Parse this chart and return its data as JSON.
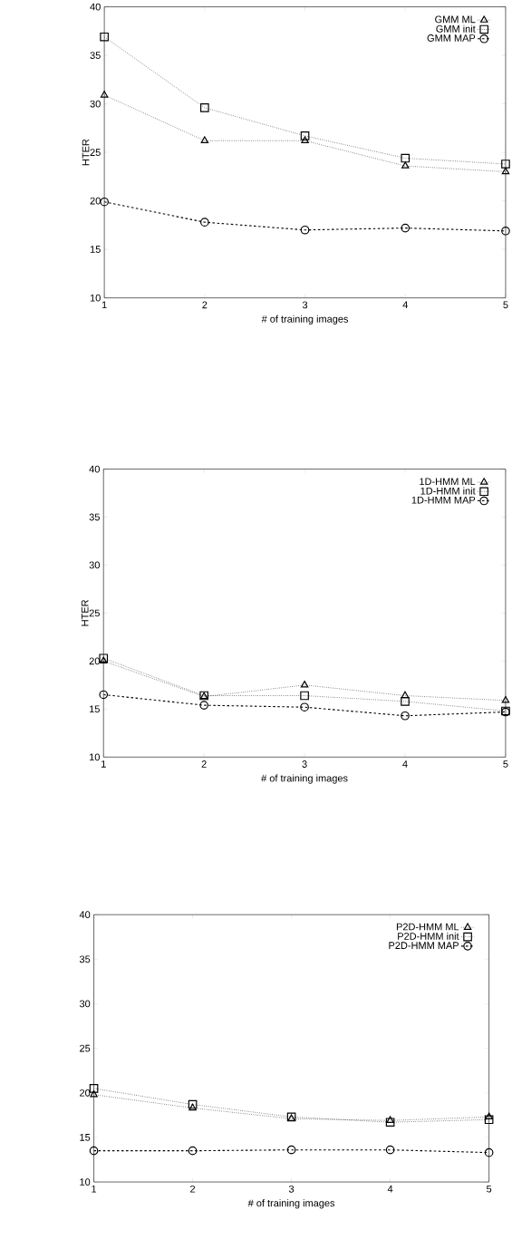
{
  "chart_data": [
    {
      "type": "line",
      "xlabel": "# of training images",
      "ylabel": "HTER",
      "x": [
        1,
        2,
        3,
        4,
        5
      ],
      "xlim": [
        1,
        5
      ],
      "ylim": [
        10,
        40
      ],
      "xticks": [
        1,
        2,
        3,
        4,
        5
      ],
      "yticks": [
        10,
        15,
        20,
        25,
        30,
        35,
        40
      ],
      "legend": "top right",
      "grid": false,
      "series": [
        {
          "name": "GMM ML",
          "color": "#000000",
          "marker": "triangle",
          "line_style": "dotted",
          "values": [
            30.9,
            26.2,
            26.2,
            23.6,
            23.0
          ]
        },
        {
          "name": "GMM init",
          "color": "#000000",
          "marker": "square",
          "line_style": "dotted",
          "values": [
            36.9,
            29.6,
            26.7,
            24.4,
            23.8
          ]
        },
        {
          "name": "GMM MAP",
          "color": "#000000",
          "marker": "circle",
          "line_style": "dashed",
          "values": [
            19.9,
            17.8,
            17.0,
            17.2,
            16.9
          ]
        }
      ]
    },
    {
      "type": "line",
      "xlabel": "# of training images",
      "ylabel": "HTER",
      "x": [
        1,
        2,
        3,
        4,
        5
      ],
      "xlim": [
        1,
        5
      ],
      "ylim": [
        10,
        40
      ],
      "xticks": [
        1,
        2,
        3,
        4,
        5
      ],
      "yticks": [
        10,
        15,
        20,
        25,
        30,
        35,
        40
      ],
      "legend": "top right",
      "grid": false,
      "series": [
        {
          "name": "1D-HMM ML",
          "color": "#000000",
          "marker": "triangle",
          "line_style": "dotted",
          "values": [
            20.0,
            16.3,
            17.5,
            16.4,
            15.9
          ]
        },
        {
          "name": "1D-HMM init",
          "color": "#000000",
          "marker": "square",
          "line_style": "dotted",
          "values": [
            20.3,
            16.4,
            16.4,
            15.8,
            14.8
          ]
        },
        {
          "name": "1D-HMM MAP",
          "color": "#000000",
          "marker": "circle",
          "line_style": "dashed",
          "values": [
            16.5,
            15.4,
            15.2,
            14.3,
            14.7
          ]
        }
      ]
    },
    {
      "type": "line",
      "xlabel": "# of training images",
      "x": [
        1,
        2,
        3,
        4,
        5
      ],
      "xlim": [
        1,
        5
      ],
      "ylim": [
        10,
        40
      ],
      "xticks": [
        1,
        2,
        3,
        4,
        5
      ],
      "yticks": [
        10,
        15,
        20,
        25,
        30,
        35,
        40
      ],
      "legend": "top right",
      "grid": false,
      "series": [
        {
          "name": "P2D-HMM ML",
          "color": "#000000",
          "marker": "triangle",
          "line_style": "dotted",
          "values": [
            19.8,
            18.3,
            17.1,
            16.9,
            17.3
          ]
        },
        {
          "name": "P2D-HMM init",
          "color": "#000000",
          "marker": "square",
          "line_style": "dotted",
          "values": [
            20.5,
            18.7,
            17.3,
            16.7,
            17.0
          ]
        },
        {
          "name": "P2D-HMM MAP",
          "color": "#000000",
          "marker": "circle",
          "line_style": "dashed",
          "values": [
            13.5,
            13.5,
            13.6,
            13.6,
            13.3
          ]
        }
      ]
    }
  ]
}
